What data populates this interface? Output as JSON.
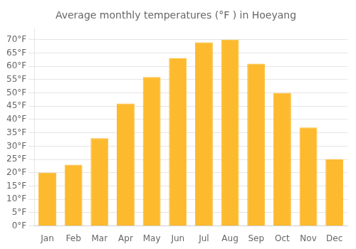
{
  "chart_data": {
    "type": "bar",
    "title": "Average monthly temperatures (°F ) in Hoeyang",
    "categories": [
      "Jan",
      "Feb",
      "Mar",
      "Apr",
      "May",
      "Jun",
      "Jul",
      "Aug",
      "Sep",
      "Oct",
      "Nov",
      "Dec"
    ],
    "values": [
      20,
      23,
      33,
      46,
      56,
      63,
      69,
      70,
      61,
      50,
      37,
      25
    ],
    "color": "#FDBA2E",
    "ylim": [
      0,
      74
    ],
    "yticks": [
      {
        "value": 0,
        "label": "0°F"
      },
      {
        "value": 5,
        "label": "5°F"
      },
      {
        "value": 10,
        "label": "10°F"
      },
      {
        "value": 15,
        "label": "15°F"
      },
      {
        "value": 20,
        "label": "20°F"
      },
      {
        "value": 25,
        "label": "25°F"
      },
      {
        "value": 30,
        "label": "30°F"
      },
      {
        "value": 35,
        "label": "35°F"
      },
      {
        "value": 40,
        "label": "40°F"
      },
      {
        "value": 45,
        "label": "45°F"
      },
      {
        "value": 50,
        "label": "50°F"
      },
      {
        "value": 55,
        "label": "55°F"
      },
      {
        "value": 60,
        "label": "60°F"
      },
      {
        "value": 65,
        "label": "65°F"
      },
      {
        "value": 70,
        "label": "70°F"
      }
    ],
    "grid": true
  }
}
